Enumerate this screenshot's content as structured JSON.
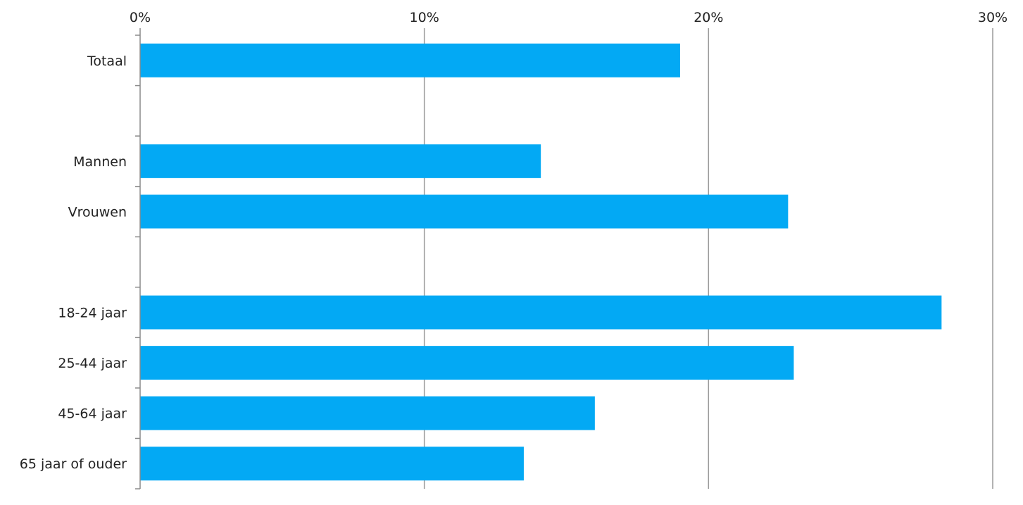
{
  "chart_data": {
    "type": "bar",
    "orientation": "horizontal",
    "x_axis_position": "top",
    "xlim": [
      0,
      30
    ],
    "x_ticks": [
      0,
      10,
      20,
      30
    ],
    "x_tick_labels": [
      "0%",
      "10%",
      "20%",
      "30%"
    ],
    "grid": true,
    "legend": "none",
    "bar_color": "#03a9f4",
    "categories": [
      "Totaal",
      "",
      "Mannen",
      "Vrouwen",
      "",
      "18-24 jaar",
      "25-44 jaar",
      "45-64 jaar",
      "65 jaar of ouder"
    ],
    "values": [
      19.0,
      null,
      14.1,
      22.8,
      null,
      28.2,
      23.0,
      16.0,
      13.5
    ]
  }
}
